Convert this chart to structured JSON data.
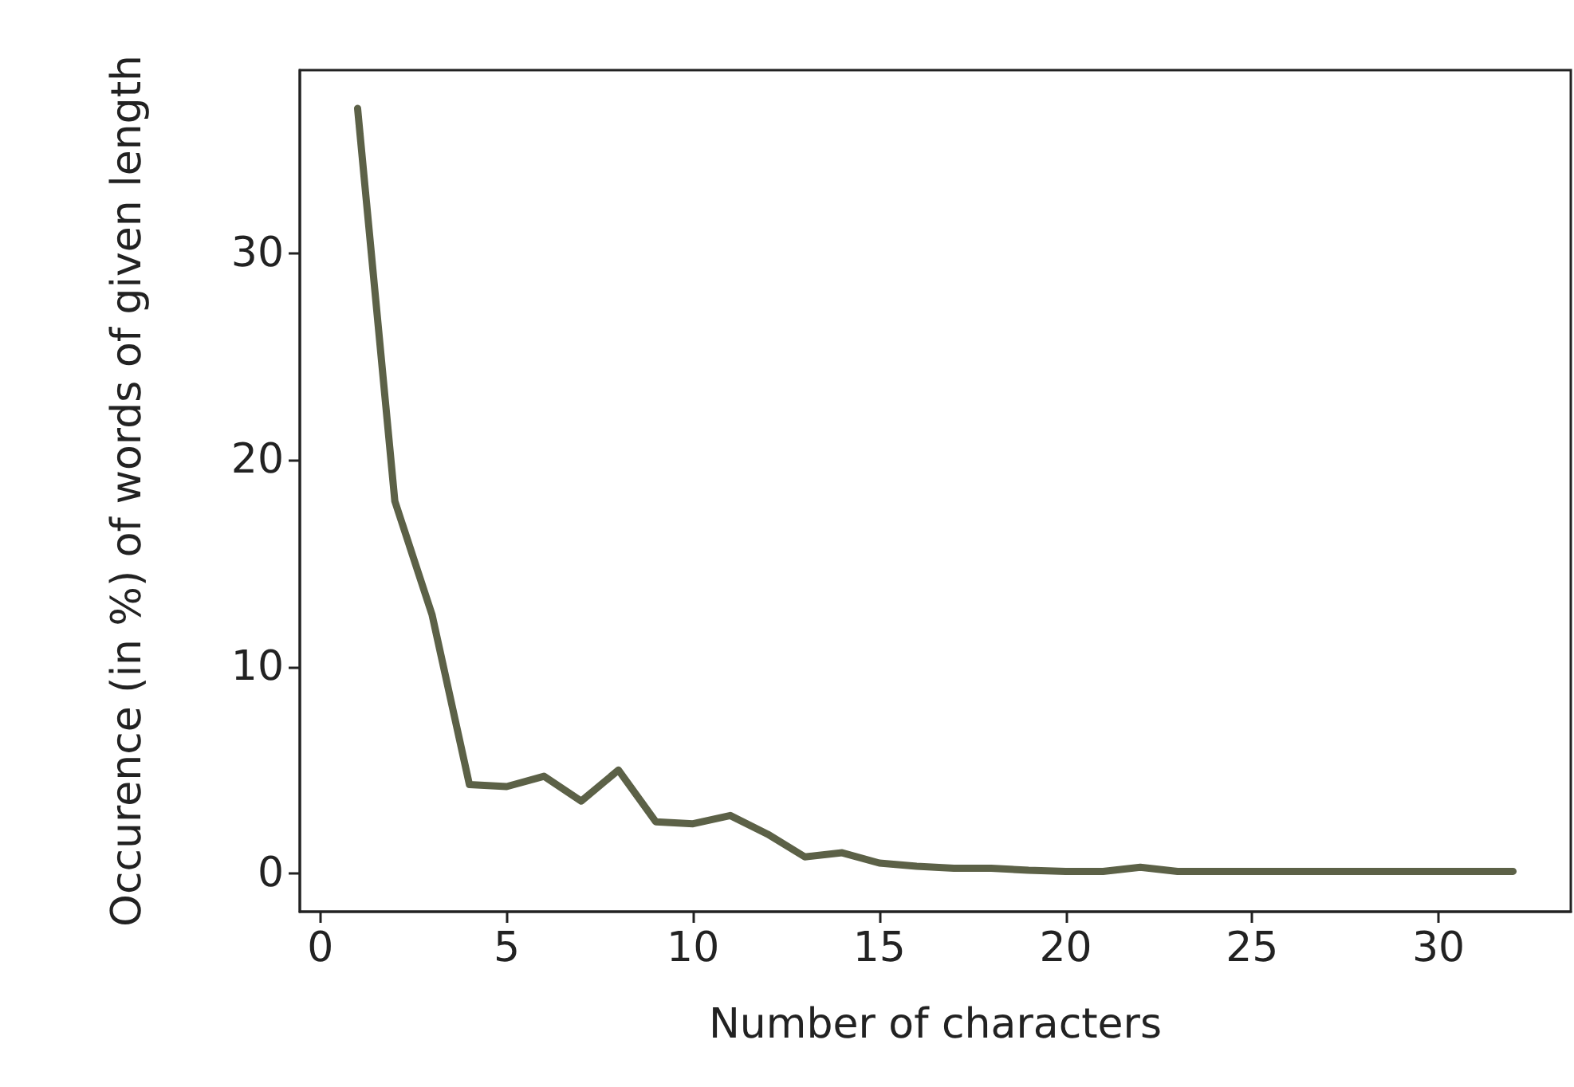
{
  "chart_data": {
    "type": "line",
    "xlabel": "Number of characters",
    "ylabel": "Occurence (in %) of words of given length",
    "x": [
      1,
      2,
      3,
      4,
      5,
      6,
      7,
      8,
      9,
      10,
      11,
      12,
      13,
      14,
      15,
      16,
      17,
      18,
      19,
      20,
      21,
      22,
      23,
      24,
      25,
      26,
      27,
      28,
      29,
      30,
      31,
      32
    ],
    "series": [
      {
        "color": "#5c6147",
        "values": [
          37,
          18,
          12.5,
          4.3,
          4.2,
          4.7,
          3.5,
          5,
          2.5,
          2.4,
          2.8,
          1.9,
          0.8,
          1.0,
          0.5,
          0.35,
          0.25,
          0.25,
          0.15,
          0.1,
          0.1,
          0.3,
          0.1,
          0.1,
          0.1,
          0.1,
          0.1,
          0.1,
          0.1,
          0.1,
          0.1,
          0.1
        ]
      }
    ],
    "xlim": [
      -0.55,
      33.55
    ],
    "xticks": [
      0,
      5,
      10,
      15,
      20,
      25,
      30
    ],
    "ylim": [
      -1.85,
      38.85
    ],
    "yticks": [
      0,
      10,
      20,
      30
    ],
    "grid": false,
    "marker": "none",
    "line_style": "solid"
  }
}
